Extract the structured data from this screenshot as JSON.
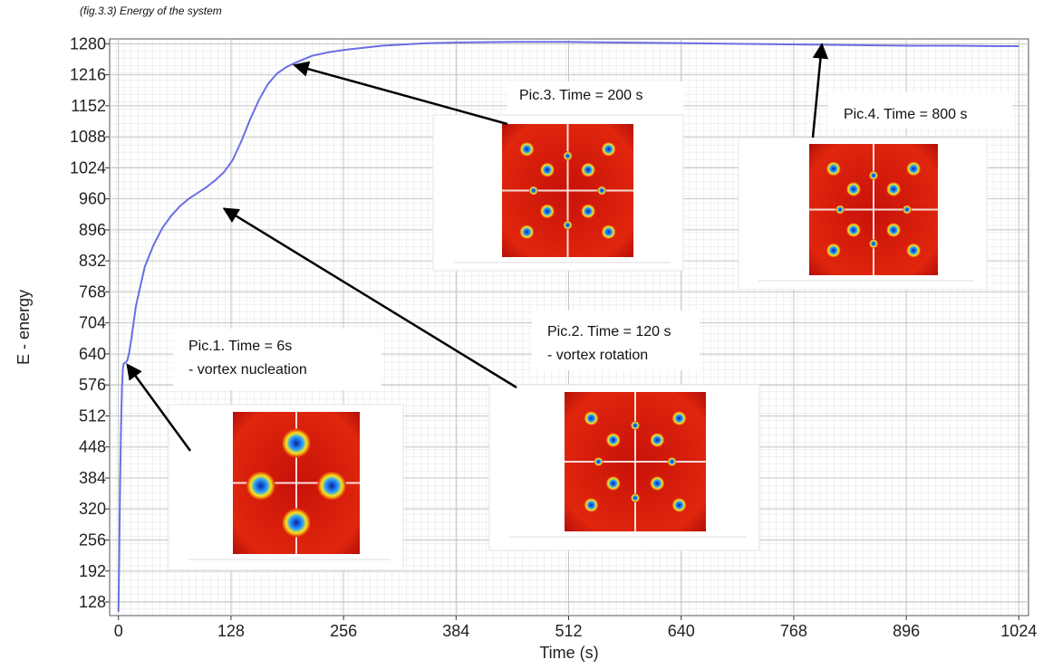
{
  "caption": "(fig.3.3) Energy of the system",
  "chart_data": {
    "type": "line",
    "xlabel": "Time (s)",
    "ylabel": "E - energy",
    "xlim": [
      -10,
      1035
    ],
    "ylim": [
      100,
      1290
    ],
    "x_ticks": [
      0,
      128,
      256,
      384,
      512,
      640,
      768,
      896,
      1024
    ],
    "y_ticks": [
      128,
      192,
      256,
      320,
      384,
      448,
      512,
      576,
      640,
      704,
      768,
      832,
      896,
      960,
      1024,
      1088,
      1152,
      1216,
      1280
    ],
    "grid": true,
    "series": [
      {
        "color": "#6a6ee6",
        "x": [
          0,
          1,
          2,
          3,
          4,
          5,
          6,
          8,
          10,
          12,
          15,
          20,
          30,
          40,
          50,
          60,
          70,
          80,
          90,
          100,
          110,
          120,
          130,
          140,
          150,
          160,
          170,
          180,
          190,
          200,
          220,
          240,
          260,
          300,
          350,
          400,
          450,
          500,
          550,
          600,
          650,
          700,
          750,
          800,
          850,
          900,
          950,
          1000,
          1024
        ],
        "y": [
          108,
          240,
          380,
          490,
          570,
          610,
          620,
          622,
          626,
          640,
          675,
          740,
          820,
          865,
          900,
          925,
          945,
          960,
          972,
          984,
          998,
          1015,
          1040,
          1080,
          1125,
          1165,
          1197,
          1218,
          1231,
          1240,
          1255,
          1263,
          1268,
          1276,
          1281,
          1283,
          1284,
          1284,
          1283,
          1282,
          1281,
          1280,
          1279,
          1278,
          1277,
          1276,
          1276,
          1275,
          1275
        ]
      }
    ],
    "annotations": [
      {
        "lines": [
          "Pic.1. Time = 6s",
          "- vortex nucleation"
        ],
        "points_to": [
          10,
          618
        ]
      },
      {
        "lines": [
          "Pic.2. Time = 120 s",
          "- vortex rotation"
        ],
        "points_to": [
          120,
          940
        ]
      },
      {
        "lines": [
          "Pic.3. Time = 200 s"
        ],
        "points_to": [
          200,
          1236
        ]
      },
      {
        "lines": [
          "Pic.4. Time = 800 s"
        ],
        "points_to": [
          800,
          1279
        ]
      }
    ]
  }
}
